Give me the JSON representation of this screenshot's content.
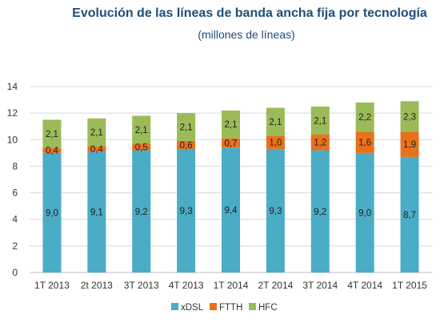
{
  "chart_data": {
    "type": "bar",
    "stacked": true,
    "title": "Evolución de las líneas de banda ancha fija por tecnología",
    "subtitle": "(millones de líneas)",
    "categories": [
      "1T 2013",
      "2t 2013",
      "3T 2013",
      "4T 2013",
      "1T 2014",
      "2T 2014",
      "3T 2014",
      "4T 2014",
      "1T 2015"
    ],
    "series": [
      {
        "name": "xDSL",
        "color": "#4bacc6",
        "values": [
          9.0,
          9.1,
          9.2,
          9.3,
          9.4,
          9.3,
          9.2,
          9.0,
          8.7
        ],
        "labels": [
          "9,0",
          "9,1",
          "9,2",
          "9,3",
          "9,4",
          "9,3",
          "9,2",
          "9,0",
          "8,7"
        ]
      },
      {
        "name": "FTTH",
        "color": "#e8711c",
        "values": [
          0.4,
          0.4,
          0.5,
          0.6,
          0.7,
          1.0,
          1.2,
          1.6,
          1.9
        ],
        "labels": [
          "0,4",
          "0,4",
          "0,5",
          "0,6",
          "0,7",
          "1,0",
          "1,2",
          "1,6",
          "1,9"
        ]
      },
      {
        "name": "HFC",
        "color": "#9bbb59",
        "values": [
          2.1,
          2.1,
          2.1,
          2.1,
          2.1,
          2.1,
          2.1,
          2.2,
          2.3
        ],
        "labels": [
          "2,1",
          "2,1",
          "2,1",
          "2,1",
          "2,1",
          "2,1",
          "2,1",
          "2,2",
          "2,3"
        ]
      }
    ],
    "yticks": [
      "0",
      "2",
      "4",
      "6",
      "8",
      "10",
      "12",
      "14"
    ],
    "ylim": [
      0,
      14
    ],
    "grid": true,
    "legend_position": "bottom"
  }
}
